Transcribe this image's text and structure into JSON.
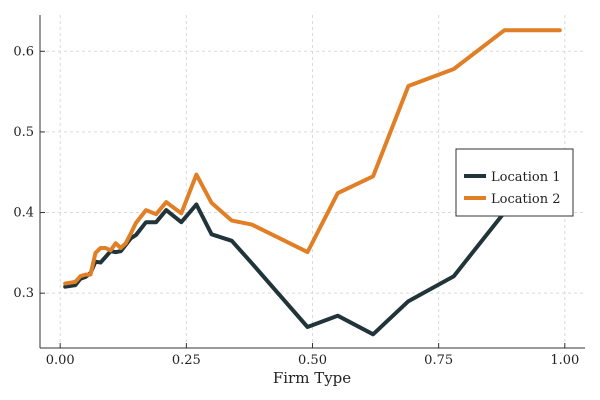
{
  "chart_data": {
    "type": "line",
    "xlabel": "Firm Type",
    "ylabel": "",
    "xlim": [
      -0.04,
      1.04
    ],
    "ylim": [
      0.232,
      0.645
    ],
    "x_ticks": [
      0.0,
      0.25,
      0.5,
      0.75,
      1.0
    ],
    "x_tick_labels": [
      "0.00",
      "0.25",
      "0.50",
      "0.75",
      "1.00"
    ],
    "y_ticks": [
      0.3,
      0.4,
      0.5,
      0.6
    ],
    "y_tick_labels": [
      "0.3",
      "0.4",
      "0.5",
      "0.6"
    ],
    "grid": true,
    "legend_position": "right",
    "series": [
      {
        "name": "Location 1",
        "color": "#20343a",
        "x": [
          0.01,
          0.02,
          0.03,
          0.04,
          0.05,
          0.06,
          0.07,
          0.08,
          0.09,
          0.1,
          0.11,
          0.12,
          0.13,
          0.14,
          0.15,
          0.17,
          0.19,
          0.21,
          0.24,
          0.27,
          0.3,
          0.34,
          0.38,
          0.49,
          0.55,
          0.62,
          0.69,
          0.78,
          0.88,
          0.99
        ],
        "y": [
          0.308,
          0.309,
          0.31,
          0.318,
          0.32,
          0.325,
          0.339,
          0.338,
          0.345,
          0.352,
          0.351,
          0.352,
          0.36,
          0.368,
          0.372,
          0.388,
          0.388,
          0.403,
          0.388,
          0.41,
          0.373,
          0.365,
          0.337,
          0.258,
          0.272,
          0.249,
          0.29,
          0.321,
          0.4,
          0.434
        ]
      },
      {
        "name": "Location 2",
        "color": "#e07f26",
        "x": [
          0.01,
          0.02,
          0.03,
          0.04,
          0.05,
          0.06,
          0.07,
          0.08,
          0.09,
          0.1,
          0.11,
          0.12,
          0.13,
          0.14,
          0.15,
          0.17,
          0.19,
          0.21,
          0.24,
          0.27,
          0.3,
          0.34,
          0.38,
          0.49,
          0.55,
          0.62,
          0.69,
          0.78,
          0.88,
          0.99
        ],
        "y": [
          0.312,
          0.313,
          0.314,
          0.321,
          0.323,
          0.323,
          0.35,
          0.356,
          0.356,
          0.353,
          0.362,
          0.356,
          0.362,
          0.374,
          0.387,
          0.403,
          0.398,
          0.413,
          0.399,
          0.447,
          0.412,
          0.39,
          0.385,
          0.351,
          0.424,
          0.445,
          0.557,
          0.578,
          0.626,
          0.626
        ]
      }
    ]
  }
}
